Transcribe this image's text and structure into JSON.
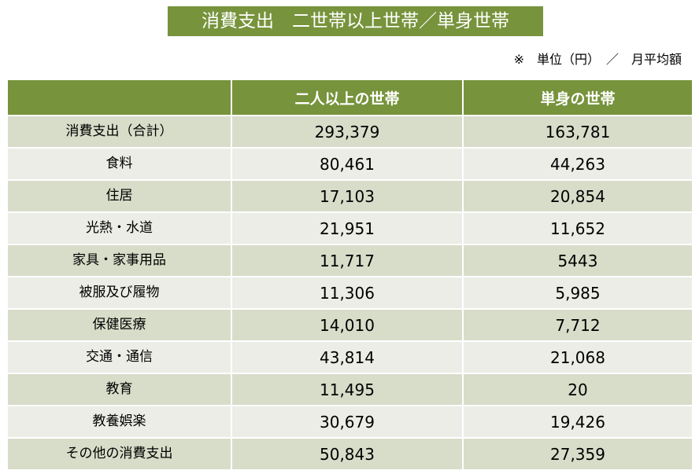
{
  "header": {
    "title": "消費支出　二世帯以上世帯／単身世帯",
    "note": "※　単位（円）　／　月平均額"
  },
  "table": {
    "columns": [
      "二人以上の世帯",
      "単身の世帯"
    ],
    "rows": [
      [
        "消費支出（合計）",
        "293,379",
        "163,781"
      ],
      [
        "食料",
        "80,461",
        "44,263"
      ],
      [
        "住居",
        "17,103",
        "20,854"
      ],
      [
        "光熱・水道",
        "21,951",
        "11,652"
      ],
      [
        "家具・家事用品",
        "11,717",
        "5443"
      ],
      [
        "被服及び履物",
        "11,306",
        "5,985"
      ],
      [
        "保健医療",
        "14,010",
        "7,712"
      ],
      [
        "交通・通信",
        "43,814",
        "21,068"
      ],
      [
        "教育",
        "11,495",
        "20"
      ],
      [
        "教養娯楽",
        "30,679",
        "19,426"
      ],
      [
        "その他の消費支出",
        "50,843",
        "27,359"
      ]
    ]
  }
}
